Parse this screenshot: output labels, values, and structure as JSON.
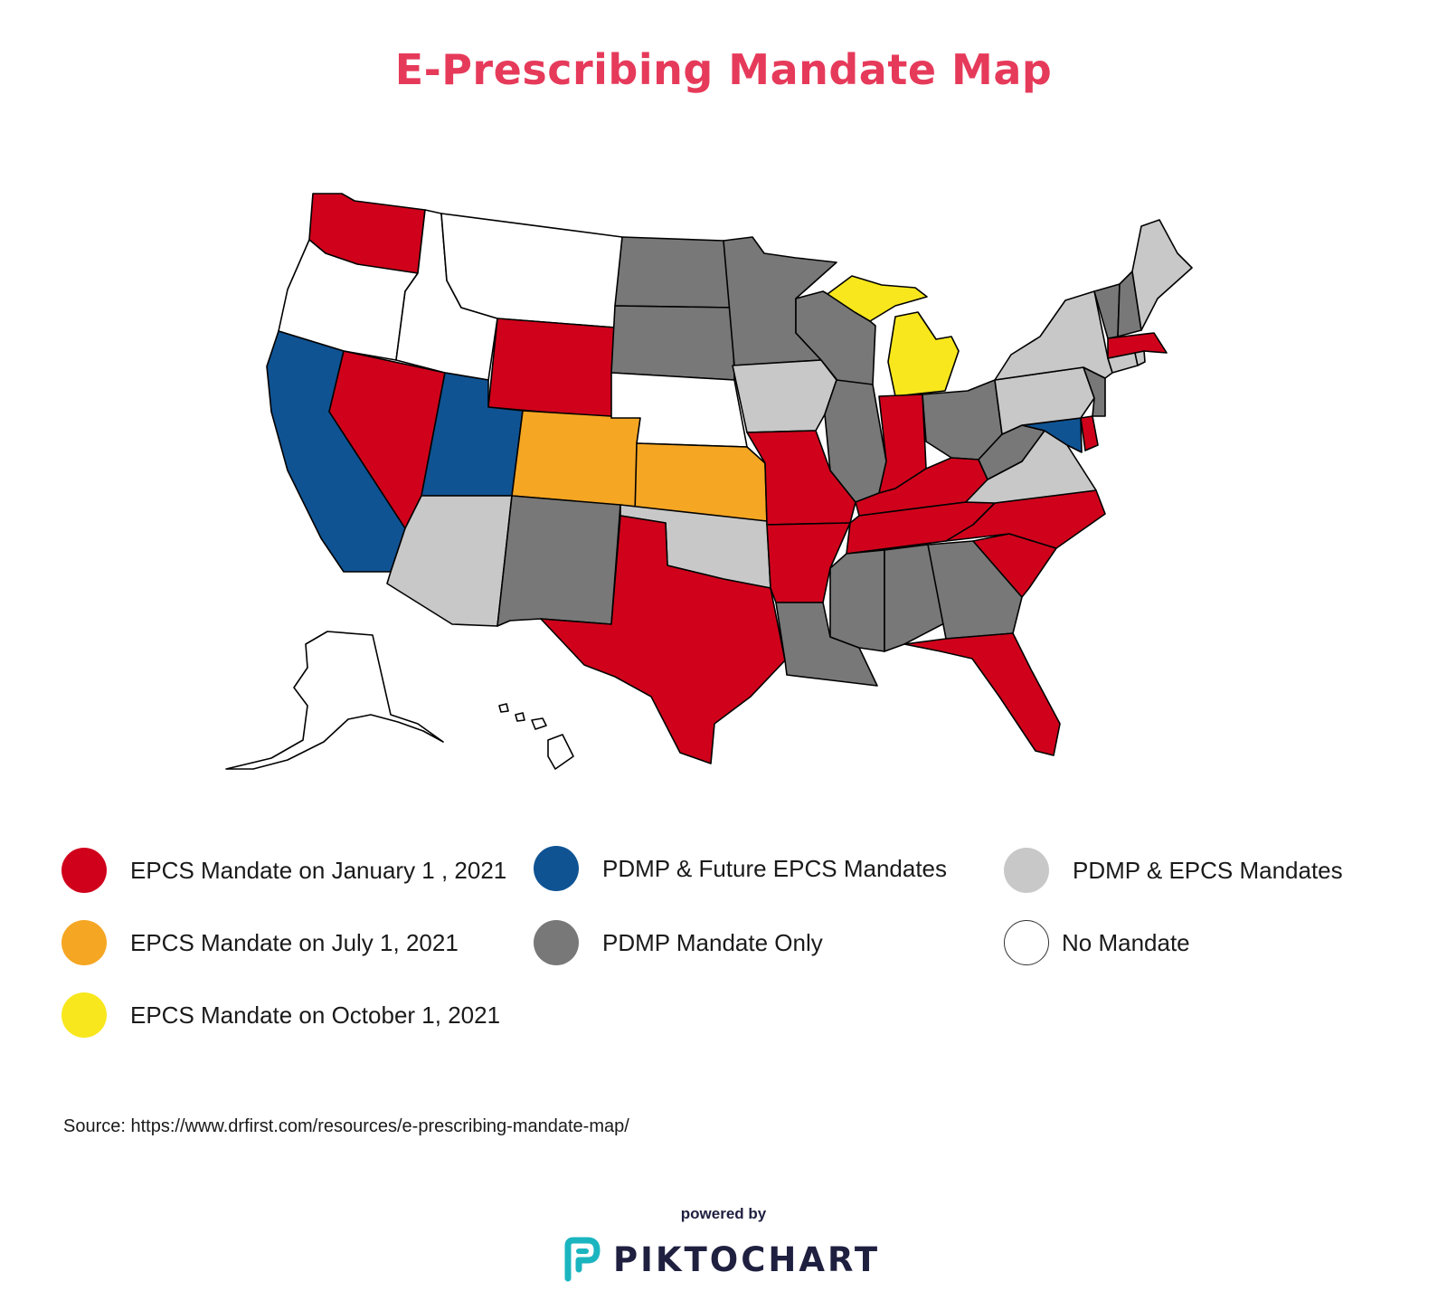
{
  "title": "E-Prescribing Mandate Map",
  "colors": {
    "red": "#d0021b",
    "blue": "#0f5393",
    "lightgray": "#c8c8c8",
    "orange": "#f5a623",
    "darkgray": "#787878",
    "white": "#ffffff",
    "yellow": "#f8e71c",
    "title": "#e63a5a",
    "brand_teal": "#1bb5c0"
  },
  "legend": [
    {
      "key": "red",
      "label": "EPCS Mandate on January 1 , 2021",
      "color": "#d0021b"
    },
    {
      "key": "blue",
      "label": "PDMP & Future EPCS Mandates",
      "color": "#0f5393"
    },
    {
      "key": "lightgray",
      "label": "PDMP & EPCS Mandates",
      "color": "#c8c8c8"
    },
    {
      "key": "orange",
      "label": "EPCS Mandate on July 1, 2021",
      "color": "#f5a623"
    },
    {
      "key": "darkgray",
      "label": "PDMP Mandate Only",
      "color": "#787878"
    },
    {
      "key": "white",
      "label": "No Mandate",
      "color": "#ffffff"
    },
    {
      "key": "yellow",
      "label": "EPCS Mandate on October 1, 2021",
      "color": "#f8e71c"
    }
  ],
  "states": [
    {
      "name": "Washington",
      "category": "red"
    },
    {
      "name": "Oregon",
      "category": "white"
    },
    {
      "name": "California",
      "category": "blue"
    },
    {
      "name": "Nevada",
      "category": "red"
    },
    {
      "name": "Idaho",
      "category": "white"
    },
    {
      "name": "Montana",
      "category": "white"
    },
    {
      "name": "Wyoming",
      "category": "red"
    },
    {
      "name": "Utah",
      "category": "blue"
    },
    {
      "name": "Arizona",
      "category": "lightgray"
    },
    {
      "name": "Colorado",
      "category": "orange"
    },
    {
      "name": "New Mexico",
      "category": "darkgray"
    },
    {
      "name": "North Dakota",
      "category": "darkgray"
    },
    {
      "name": "South Dakota",
      "category": "darkgray"
    },
    {
      "name": "Nebraska",
      "category": "white"
    },
    {
      "name": "Kansas",
      "category": "orange"
    },
    {
      "name": "Oklahoma",
      "category": "lightgray"
    },
    {
      "name": "Texas",
      "category": "red"
    },
    {
      "name": "Minnesota",
      "category": "darkgray"
    },
    {
      "name": "Iowa",
      "category": "lightgray"
    },
    {
      "name": "Missouri",
      "category": "red"
    },
    {
      "name": "Arkansas",
      "category": "red"
    },
    {
      "name": "Louisiana",
      "category": "darkgray"
    },
    {
      "name": "Wisconsin",
      "category": "darkgray"
    },
    {
      "name": "Illinois",
      "category": "darkgray"
    },
    {
      "name": "Michigan",
      "category": "yellow"
    },
    {
      "name": "Indiana",
      "category": "red"
    },
    {
      "name": "Ohio",
      "category": "darkgray"
    },
    {
      "name": "Kentucky",
      "category": "red"
    },
    {
      "name": "Tennessee",
      "category": "red"
    },
    {
      "name": "Mississippi",
      "category": "darkgray"
    },
    {
      "name": "Alabama",
      "category": "darkgray"
    },
    {
      "name": "Georgia",
      "category": "darkgray"
    },
    {
      "name": "Florida",
      "category": "red"
    },
    {
      "name": "South Carolina",
      "category": "red"
    },
    {
      "name": "North Carolina",
      "category": "red"
    },
    {
      "name": "Virginia",
      "category": "lightgray"
    },
    {
      "name": "West Virginia",
      "category": "darkgray"
    },
    {
      "name": "Maryland",
      "category": "blue"
    },
    {
      "name": "Delaware",
      "category": "red"
    },
    {
      "name": "Pennsylvania",
      "category": "lightgray"
    },
    {
      "name": "New Jersey",
      "category": "darkgray"
    },
    {
      "name": "New York",
      "category": "lightgray"
    },
    {
      "name": "Connecticut",
      "category": "lightgray"
    },
    {
      "name": "Rhode Island",
      "category": "lightgray"
    },
    {
      "name": "Massachusetts",
      "category": "red"
    },
    {
      "name": "Vermont",
      "category": "darkgray"
    },
    {
      "name": "New Hampshire",
      "category": "darkgray"
    },
    {
      "name": "Maine",
      "category": "lightgray"
    },
    {
      "name": "Alaska",
      "category": "white"
    },
    {
      "name": "Hawaii",
      "category": "white"
    }
  ],
  "source": "Source: https://www.drfirst.com/resources/e-prescribing-mandate-map/",
  "footer": {
    "powered_by": "powered by",
    "brand": "PIKTOCHART"
  }
}
